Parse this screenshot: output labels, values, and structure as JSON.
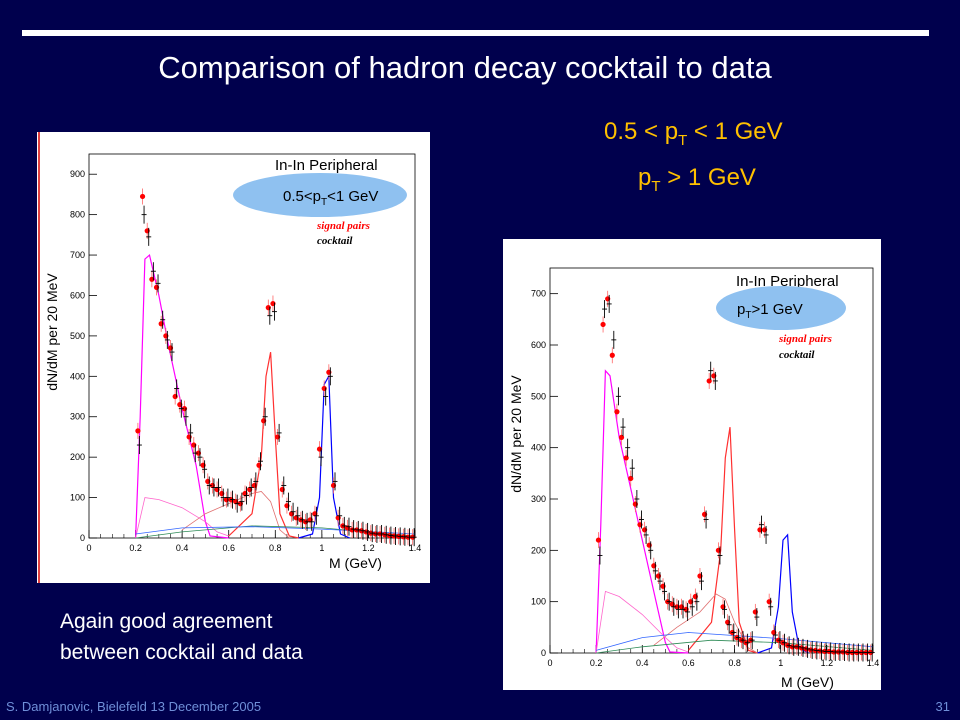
{
  "slide": {
    "title": "Comparison of hadron decay cocktail to data",
    "subtitle1": {
      "pre": "0.5 < p",
      "sub": "T",
      "post": " < 1 GeV"
    },
    "subtitle2": {
      "pre": "p",
      "sub": "T",
      "post": " > 1 GeV"
    },
    "remark_line1": "Again good agreement",
    "remark_line2": "between cocktail and data",
    "footer_left": "S. Damjanovic, Bielefeld 13 December 2005",
    "footer_right": "31"
  },
  "colors": {
    "background": "#00004d",
    "subtitle": "#ffc000",
    "data_red": "#ff0000",
    "eta": "#ff00ff",
    "omega": "#ff3030",
    "phi": "#0000ff",
    "ellipse": "#8fc1f0"
  },
  "chart_data": [
    {
      "type": "scatter",
      "title": "In-In Peripheral",
      "cut_label": {
        "pre": "0.5<p",
        "sub": "T",
        "post": "<1 GeV"
      },
      "legend": [
        "signal pairs",
        "cocktail"
      ],
      "xlabel": "M (GeV)",
      "ylabel": "dN/dM per 20 MeV",
      "xlim": [
        0,
        1.4
      ],
      "ylim": [
        0,
        950
      ],
      "xticks": [
        "0",
        "0.2",
        "0.4",
        "0.6",
        "0.8",
        "1",
        "1.2",
        "1.4"
      ],
      "yticks": [
        "0",
        "100",
        "200",
        "300",
        "400",
        "500",
        "600",
        "700",
        "800",
        "900"
      ],
      "series": [
        {
          "x": [
            0.21,
            0.23,
            0.25,
            0.27,
            0.29,
            0.31,
            0.33,
            0.35,
            0.37,
            0.39,
            0.41,
            0.43,
            0.45,
            0.47,
            0.49,
            0.51,
            0.53,
            0.55,
            0.57,
            0.59,
            0.61,
            0.63,
            0.65,
            0.67,
            0.69,
            0.71,
            0.73,
            0.75,
            0.77,
            0.79,
            0.81,
            0.83,
            0.85,
            0.87,
            0.89,
            0.91,
            0.93,
            0.95,
            0.97,
            0.99,
            1.01,
            1.03,
            1.05,
            1.07,
            1.09,
            1.11,
            1.13,
            1.15,
            1.17,
            1.19,
            1.21,
            1.23,
            1.25,
            1.27,
            1.29,
            1.31,
            1.33,
            1.35,
            1.37,
            1.39
          ],
          "y": [
            265,
            845,
            760,
            640,
            620,
            530,
            500,
            470,
            350,
            330,
            320,
            250,
            230,
            210,
            180,
            140,
            130,
            120,
            110,
            95,
            95,
            90,
            85,
            110,
            120,
            130,
            180,
            290,
            570,
            580,
            250,
            120,
            80,
            60,
            50,
            45,
            40,
            45,
            60,
            220,
            370,
            410,
            130,
            50,
            30,
            25,
            20,
            20,
            18,
            15,
            12,
            10,
            10,
            8,
            6,
            5,
            4,
            3,
            2,
            2
          ]
        },
        {
          "x": [
            0.21,
            0.23,
            0.25,
            0.27,
            0.29,
            0.31,
            0.33,
            0.35,
            0.37,
            0.39,
            0.41,
            0.43,
            0.45,
            0.47,
            0.49,
            0.51,
            0.53,
            0.55,
            0.57,
            0.59,
            0.61,
            0.63,
            0.65,
            0.67,
            0.69,
            0.71,
            0.73,
            0.75,
            0.77,
            0.79,
            0.81,
            0.83,
            0.85,
            0.87,
            0.89,
            0.91,
            0.93,
            0.95,
            0.97,
            0.99,
            1.01,
            1.03,
            1.05,
            1.07,
            1.09,
            1.11,
            1.13,
            1.15,
            1.17,
            1.19,
            1.21,
            1.23,
            1.25,
            1.27,
            1.29,
            1.31,
            1.33,
            1.35,
            1.37,
            1.39
          ],
          "y": [
            230,
            800,
            745,
            660,
            630,
            540,
            490,
            460,
            370,
            320,
            300,
            260,
            210,
            200,
            170,
            130,
            125,
            125,
            100,
            100,
            95,
            85,
            90,
            105,
            125,
            140,
            190,
            300,
            550,
            560,
            260,
            130,
            90,
            65,
            55,
            45,
            40,
            40,
            55,
            200,
            350,
            400,
            140,
            55,
            30,
            28,
            22,
            20,
            18,
            15,
            12,
            10,
            10,
            8,
            6,
            5,
            4,
            3,
            2,
            2
          ]
        }
      ]
    },
    {
      "type": "scatter",
      "title": "In-In Peripheral",
      "cut_label": {
        "pre": "p",
        "sub": "T",
        "post": ">1 GeV"
      },
      "legend": [
        "signal pairs",
        "cocktail"
      ],
      "xlabel": "M (GeV)",
      "ylabel": "dN/dM per 20 MeV",
      "xlim": [
        0,
        1.4
      ],
      "ylim": [
        0,
        750
      ],
      "xticks": [
        "0",
        "0.2",
        "0.4",
        "0.6",
        "0.8",
        "1",
        "1.2",
        "1.4"
      ],
      "yticks": [
        "0",
        "100",
        "200",
        "300",
        "400",
        "500",
        "600",
        "700"
      ],
      "series": [
        {
          "x": [
            0.21,
            0.23,
            0.25,
            0.27,
            0.29,
            0.31,
            0.33,
            0.35,
            0.37,
            0.39,
            0.41,
            0.43,
            0.45,
            0.47,
            0.49,
            0.51,
            0.53,
            0.55,
            0.57,
            0.59,
            0.61,
            0.63,
            0.65,
            0.67,
            0.69,
            0.71,
            0.73,
            0.75,
            0.77,
            0.79,
            0.81,
            0.83,
            0.85,
            0.87,
            0.89,
            0.91,
            0.93,
            0.95,
            0.97,
            0.99,
            1.01,
            1.03,
            1.05,
            1.07,
            1.09,
            1.11,
            1.13,
            1.15,
            1.17,
            1.19,
            1.21,
            1.23,
            1.25,
            1.27,
            1.29,
            1.31,
            1.33,
            1.35,
            1.37,
            1.39
          ],
          "y": [
            220,
            640,
            690,
            580,
            470,
            420,
            380,
            340,
            290,
            250,
            240,
            210,
            170,
            150,
            130,
            100,
            95,
            90,
            90,
            85,
            100,
            110,
            150,
            270,
            530,
            540,
            200,
            90,
            60,
            40,
            30,
            25,
            20,
            25,
            80,
            240,
            240,
            100,
            40,
            25,
            20,
            15,
            12,
            12,
            10,
            8,
            6,
            5,
            4,
            3,
            3,
            2,
            2,
            2,
            1,
            1,
            1,
            1,
            1,
            1
          ]
        },
        {
          "x": [
            0.21,
            0.23,
            0.25,
            0.27,
            0.29,
            0.31,
            0.33,
            0.35,
            0.37,
            0.39,
            0.41,
            0.43,
            0.45,
            0.47,
            0.49,
            0.51,
            0.53,
            0.55,
            0.57,
            0.59,
            0.61,
            0.63,
            0.65,
            0.67,
            0.69,
            0.71,
            0.73,
            0.75,
            0.77,
            0.79,
            0.81,
            0.83,
            0.85,
            0.87,
            0.89,
            0.91,
            0.93,
            0.95,
            0.97,
            0.99,
            1.01,
            1.03,
            1.05,
            1.07,
            1.09,
            1.11,
            1.13,
            1.15,
            1.17,
            1.19,
            1.21,
            1.23,
            1.25,
            1.27,
            1.29,
            1.31,
            1.33,
            1.35,
            1.37,
            1.39
          ],
          "y": [
            190,
            670,
            680,
            610,
            500,
            440,
            400,
            360,
            300,
            260,
            230,
            200,
            160,
            140,
            120,
            100,
            90,
            85,
            85,
            80,
            90,
            100,
            140,
            260,
            550,
            530,
            190,
            85,
            55,
            40,
            30,
            25,
            20,
            25,
            70,
            250,
            230,
            90,
            35,
            25,
            20,
            15,
            12,
            12,
            10,
            8,
            6,
            5,
            4,
            3,
            3,
            2,
            2,
            2,
            1,
            1,
            1,
            1,
            1,
            1
          ]
        }
      ]
    }
  ]
}
